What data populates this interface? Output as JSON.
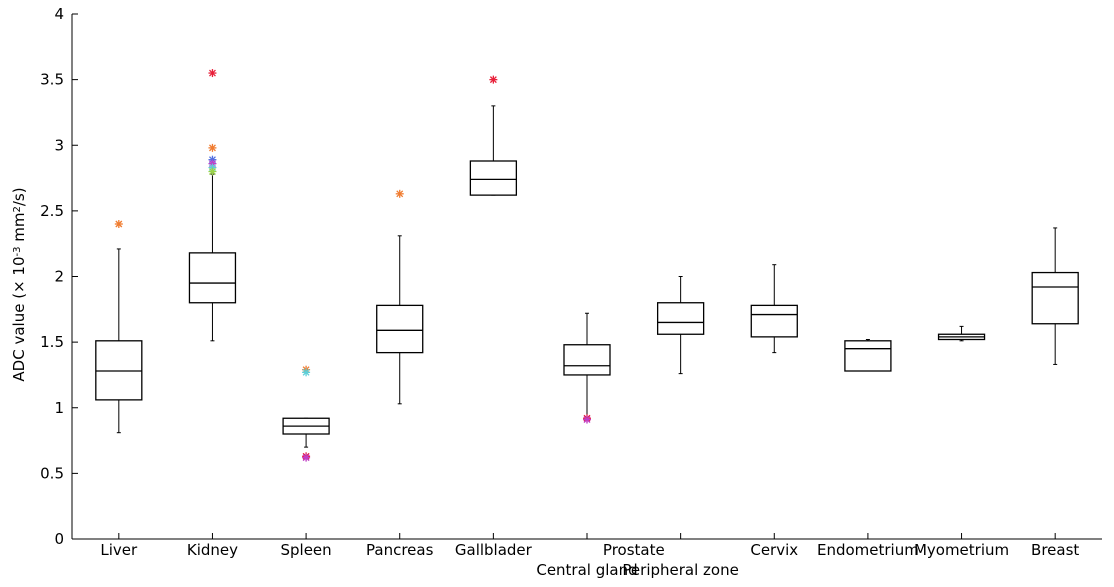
{
  "chart_data": {
    "type": "box",
    "title": "",
    "ylabel": {
      "prefix": "ADC value (× 10",
      "exp1": "-3",
      "middle": " mm",
      "exp2": "2",
      "suffix": "/s)"
    },
    "ylim": [
      0,
      4
    ],
    "yticks": [
      {
        "value": 0,
        "label": "0"
      },
      {
        "value": 0.5,
        "label": "0.5"
      },
      {
        "value": 1,
        "label": "1"
      },
      {
        "value": 1.5,
        "label": "1.5"
      },
      {
        "value": 2,
        "label": "2"
      },
      {
        "value": 2.5,
        "label": "2.5"
      },
      {
        "value": 3,
        "label": "3"
      },
      {
        "value": 3.5,
        "label": "3.5"
      },
      {
        "value": 4,
        "label": "4"
      }
    ],
    "grid": false,
    "categories": [
      {
        "label": "Liver",
        "row": 1,
        "whisker_low": 0.81,
        "q1": 1.06,
        "median": 1.28,
        "q3": 1.51,
        "whisker_high": 2.21,
        "outliers": [
          {
            "value": 2.4,
            "color": "#f07c30"
          }
        ]
      },
      {
        "label": "Kidney",
        "row": 1,
        "whisker_low": 1.51,
        "q1": 1.8,
        "median": 1.95,
        "q3": 2.18,
        "whisker_high": 2.78,
        "outliers": [
          {
            "value": 3.55,
            "color": "#e8203a"
          },
          {
            "value": 2.98,
            "color": "#f07c30"
          },
          {
            "value": 2.89,
            "color": "#4f6fe0"
          },
          {
            "value": 2.86,
            "color": "#c03fc8"
          },
          {
            "value": 2.83,
            "color": "#5ccfd8"
          },
          {
            "value": 2.8,
            "color": "#9ad24a"
          }
        ]
      },
      {
        "label": "Spleen",
        "row": 1,
        "whisker_low": 0.7,
        "q1": 0.8,
        "median": 0.86,
        "q3": 0.92,
        "whisker_high": 0.92,
        "outliers": [
          {
            "value": 1.29,
            "color": "#f07c30"
          },
          {
            "value": 1.27,
            "color": "#5ccfd8"
          },
          {
            "value": 0.63,
            "color": "#e8203a"
          },
          {
            "value": 0.62,
            "color": "#c03fc8"
          }
        ]
      },
      {
        "label": "Pancreas",
        "row": 1,
        "whisker_low": 1.03,
        "q1": 1.42,
        "median": 1.59,
        "q3": 1.78,
        "whisker_high": 2.31,
        "outliers": [
          {
            "value": 2.63,
            "color": "#f07c30"
          }
        ]
      },
      {
        "label": "Gallblader",
        "row": 1,
        "whisker_low": 2.62,
        "q1": 2.62,
        "median": 2.74,
        "q3": 2.88,
        "whisker_high": 3.3,
        "outliers": [
          {
            "value": 3.5,
            "color": "#e8203a"
          }
        ]
      },
      {
        "label": "Central gland",
        "row": 2,
        "whisker_low": 0.92,
        "q1": 1.25,
        "median": 1.32,
        "q3": 1.48,
        "whisker_high": 1.72,
        "outliers": [
          {
            "value": 0.92,
            "color": "#e8203a"
          },
          {
            "value": 0.91,
            "color": "#c03fc8"
          }
        ]
      },
      {
        "label": "Peripheral zone",
        "row": 2,
        "whisker_low": 1.26,
        "q1": 1.56,
        "median": 1.65,
        "q3": 1.8,
        "whisker_high": 2.0,
        "outliers": []
      },
      {
        "label": "Cervix",
        "row": 1,
        "whisker_low": 1.42,
        "q1": 1.54,
        "median": 1.71,
        "q3": 1.78,
        "whisker_high": 2.09,
        "outliers": []
      },
      {
        "label": "Endometrium",
        "row": 1,
        "whisker_low": 1.28,
        "q1": 1.28,
        "median": 1.45,
        "q3": 1.51,
        "whisker_high": 1.52,
        "outliers": []
      },
      {
        "label": "Myometrium",
        "row": 1,
        "whisker_low": 1.51,
        "q1": 1.52,
        "median": 1.54,
        "q3": 1.56,
        "whisker_high": 1.62,
        "outliers": []
      },
      {
        "label": "Breast",
        "row": 1,
        "whisker_low": 1.33,
        "q1": 1.64,
        "median": 1.92,
        "q3": 2.03,
        "whisker_high": 2.37,
        "outliers": []
      }
    ],
    "group_labels": [
      {
        "label": "Prostate",
        "spans": [
          "Central gland",
          "Peripheral zone"
        ]
      }
    ]
  }
}
